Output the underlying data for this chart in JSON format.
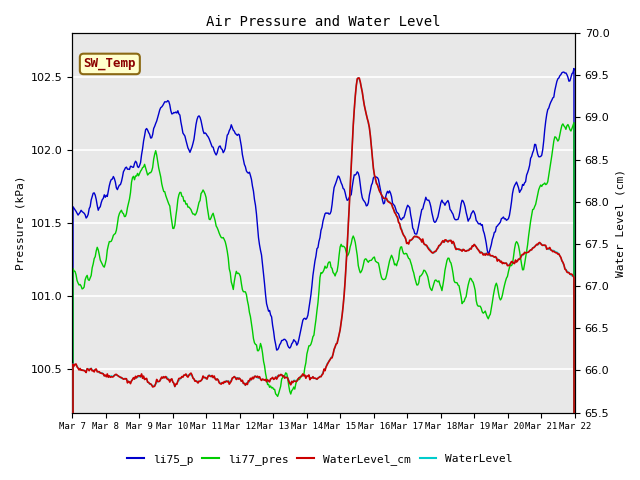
{
  "title": "Air Pressure and Water Level",
  "xlabel_ticks": [
    "Mar 7",
    "Mar 8",
    "Mar 9",
    "Mar 10",
    "Mar 11",
    "Mar 12",
    "Mar 13",
    "Mar 14",
    "Mar 15",
    "Mar 16",
    "Mar 17",
    "Mar 18",
    "Mar 19",
    "Mar 20",
    "Mar 21",
    "Mar 22"
  ],
  "ylabel_left": "Pressure (kPa)",
  "ylabel_right": "Water Level (cm)",
  "ylim_left": [
    100.2,
    102.8
  ],
  "ylim_right": [
    65.5,
    70.0
  ],
  "annotation_text": "SW_Temp",
  "annotation_fg": "#8B0000",
  "annotation_bg": "#FFFFCC",
  "annotation_edge": "#8B6914",
  "plot_bg": "#E8E8E8",
  "grid_color": "#FFFFFF",
  "color_li75p": "#0000CC",
  "color_li77": "#00CC00",
  "color_wlcm": "#CC0000",
  "color_wl": "#00CCCC",
  "title_fontsize": 10,
  "axis_label_fontsize": 8,
  "tick_fontsize": 8
}
